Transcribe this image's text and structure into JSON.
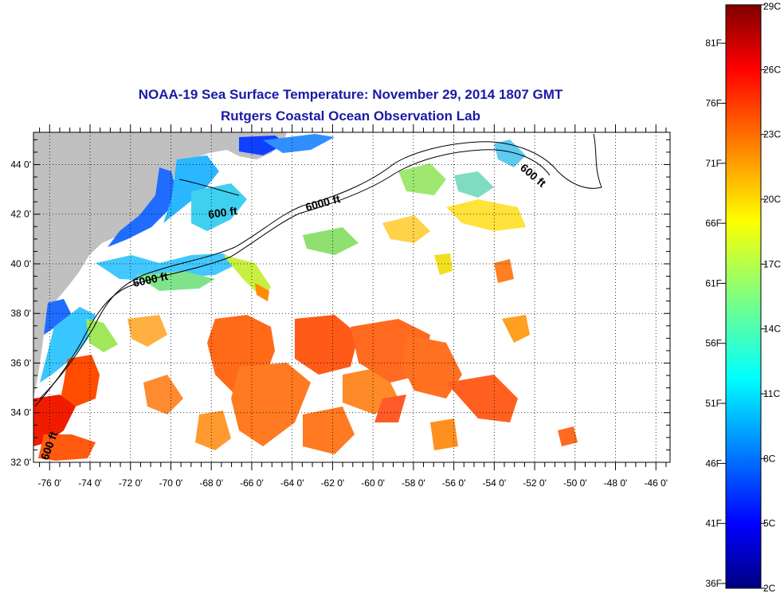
{
  "title": {
    "line1": "NOAA-19 Sea Surface Temperature:  November 29, 2014 1807 GMT",
    "line2": "Rutgers Coastal Ocean Observation Lab"
  },
  "map": {
    "lat_labels": [
      "44 0'",
      "42 0'",
      "40 0'",
      "38 0'",
      "36 0'",
      "34 0'",
      "32 0'"
    ],
    "lat_values": [
      44,
      42,
      40,
      38,
      36,
      34,
      32
    ],
    "lon_labels": [
      "-76 0'",
      "-74 0'",
      "-72 0'",
      "-70 0'",
      "-68 0'",
      "-66 0'",
      "-64 0'",
      "-62 0'",
      "-60 0'",
      "-58 0'",
      "-56 0'",
      "-54 0'",
      "-52 0'",
      "-50 0'",
      "-48 0'",
      "-46 0'"
    ],
    "lon_values": [
      -76,
      -74,
      -72,
      -70,
      -68,
      -66,
      -64,
      -62,
      -60,
      -58,
      -56,
      -54,
      -52,
      -50,
      -48,
      -46
    ],
    "lat_range": [
      32,
      45.3
    ],
    "lon_range": [
      -76.8,
      -45.3
    ],
    "contour_labels": [
      "600 ft",
      "6000 ft",
      "6000 ft",
      "600 ft",
      "600 ft"
    ],
    "land_color": "#c0c0c0",
    "grid": "dotted"
  },
  "colorbar": {
    "celsius_labels": [
      "29C",
      "26C",
      "23C",
      "20C",
      "17C",
      "14C",
      "11C",
      "8C",
      "5C",
      "2C"
    ],
    "celsius_values": [
      29,
      26,
      23,
      20,
      17,
      14,
      11,
      8,
      5,
      2
    ],
    "fahrenheit_labels": [
      "81F",
      "76F",
      "71F",
      "66F",
      "61F",
      "56F",
      "51F",
      "46F",
      "41F",
      "36F"
    ],
    "fahrenheit_values": [
      81,
      76,
      71,
      66,
      61,
      56,
      51,
      46,
      41,
      36
    ],
    "range_c": [
      2,
      29
    ],
    "colormap": "jet"
  }
}
